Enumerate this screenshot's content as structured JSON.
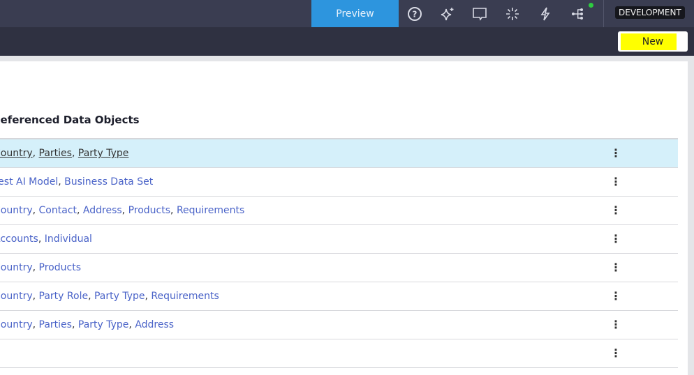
{
  "header": {
    "preview_label": "Preview",
    "environment_badge": "DEVELOPMENT",
    "icons": [
      "help-icon",
      "sparkle-icon",
      "comment-icon",
      "burst-icon",
      "lightning-icon",
      "tree-icon"
    ]
  },
  "toolbar": {
    "new_label": "New"
  },
  "section": {
    "heading": "Referenced Data Objects"
  },
  "rows": [
    {
      "items": [
        "Country",
        "Parties",
        "Party Type"
      ],
      "selected": true
    },
    {
      "items": [
        "Test AI Model",
        "Business Data Set"
      ]
    },
    {
      "items": [
        "Country",
        "Contact",
        "Address",
        "Products",
        "Requirements"
      ]
    },
    {
      "items": [
        "Accounts",
        "Individual"
      ]
    },
    {
      "items": [
        "Country",
        "Products"
      ]
    },
    {
      "items": [
        "Country",
        "Party Role",
        "Party Type",
        "Requirements"
      ]
    },
    {
      "items": [
        "Country",
        "Parties",
        "Party Type",
        "Address"
      ]
    },
    {
      "items": []
    }
  ],
  "colors": {
    "accent": "#2d95de",
    "link": "#4a63c8",
    "selected_row": "#d5f0fa",
    "highlight": "#ffff00"
  }
}
